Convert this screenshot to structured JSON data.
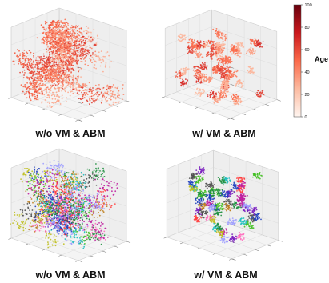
{
  "panels": [
    {
      "caption": "w/o VM & ABM",
      "coloring": "age",
      "density": "dense"
    },
    {
      "caption": "w/ VM & ABM",
      "coloring": "age",
      "density": "sparse"
    },
    {
      "caption": "w/o VM & ABM",
      "coloring": "cluster",
      "density": "dense"
    },
    {
      "caption": "w/ VM & ABM",
      "coloring": "cluster",
      "density": "sparse"
    }
  ],
  "colorbar": {
    "label": "Age",
    "ticks": [
      "0",
      "20",
      "40",
      "60",
      "80",
      "100"
    ],
    "range": [
      0,
      100
    ],
    "colormap": [
      "#fff5f0",
      "#fcbba1",
      "#fb6a4a",
      "#cb181d",
      "#67000d"
    ]
  },
  "chart_data": {
    "type": "scatter",
    "dimensions": 3,
    "panels": 4,
    "value_colorbar": {
      "label": "Age",
      "range": [
        0,
        100
      ],
      "ticks": [
        0,
        20,
        40,
        60,
        80,
        100
      ]
    },
    "cluster_palette": [
      "#1f3fbf",
      "#7a1fbf",
      "#1f8f3f",
      "#bf1f9f",
      "#1fbfbf",
      "#bf7f1f",
      "#3fbf1f",
      "#ff6fbf",
      "#4f4f4f",
      "#9f9fff",
      "#bfbf1f",
      "#ff3f3f"
    ]
  }
}
